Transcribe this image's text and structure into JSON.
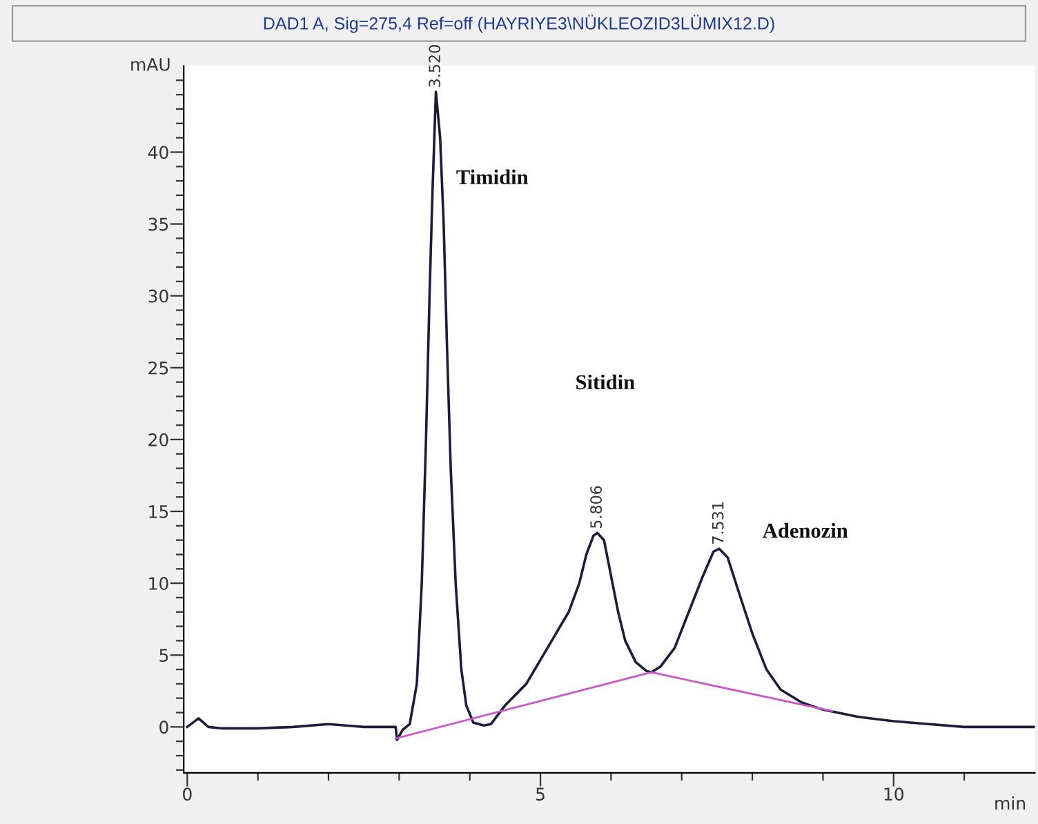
{
  "chart_data": {
    "type": "line",
    "title": "DAD1 A, Sig=275,4 Ref=off (HAYRIYE3\\NÜKLEOZID3LÜMIX12.D)",
    "xlabel": "min",
    "ylabel": "mAU",
    "series": [
      {
        "color": "#1c1c3c",
        "x": [
          0,
          0.16,
          0.3,
          0.5,
          1.0,
          1.5,
          2.0,
          2.5,
          2.95,
          2.97,
          3.05,
          3.15,
          3.25,
          3.32,
          3.38,
          3.43,
          3.47,
          3.52,
          3.58,
          3.63,
          3.68,
          3.73,
          3.8,
          3.88,
          3.95,
          4.05,
          4.2,
          4.3,
          4.5,
          4.8,
          5.1,
          5.4,
          5.55,
          5.65,
          5.75,
          5.806,
          5.9,
          6.0,
          6.1,
          6.2,
          6.35,
          6.5,
          6.57,
          6.7,
          6.9,
          7.1,
          7.3,
          7.45,
          7.531,
          7.65,
          7.8,
          8.0,
          8.2,
          8.4,
          8.7,
          9.0,
          9.5,
          10.0,
          10.5,
          11.0,
          12.0
        ],
        "values": [
          0,
          0.6,
          0,
          -0.1,
          -0.1,
          0,
          0.2,
          0,
          0,
          -0.9,
          -0.2,
          0.2,
          3,
          10,
          20,
          30,
          37,
          44.2,
          41,
          35,
          26,
          18,
          10,
          4,
          1.5,
          0.3,
          0.1,
          0.2,
          1.5,
          3,
          5.5,
          8,
          10,
          12,
          13.3,
          13.5,
          13,
          10.5,
          8,
          6,
          4.5,
          3.9,
          3.8,
          4.2,
          5.5,
          8,
          10.5,
          12.2,
          12.4,
          11.8,
          9.5,
          6.5,
          4,
          2.6,
          1.7,
          1.2,
          0.7,
          0.4,
          0.2,
          0,
          0
        ]
      },
      {
        "color": "#cc55cc",
        "x": [
          2.95,
          6.57,
          9.13
        ],
        "values": [
          -0.8,
          3.8,
          1.1
        ]
      }
    ],
    "annotations": [
      {
        "text": "3.520",
        "x": 3.52,
        "y": 44.2
      },
      {
        "text": "5.806",
        "x": 5.806,
        "y": 13.5
      },
      {
        "text": "7.531",
        "x": 7.531,
        "y": 12.4
      },
      "Timidin",
      "Sitidin",
      "Adenozin"
    ],
    "xlim": [
      -0.05,
      12.0
    ],
    "ylim": [
      -3.2,
      46
    ],
    "xticks": [
      0,
      {
        "value": 1,
        "label": null
      },
      {
        "value": 2,
        "label": null
      },
      {
        "value": 3,
        "label": null
      },
      {
        "value": 4,
        "label": null
      },
      5,
      {
        "value": 6,
        "label": null
      },
      {
        "value": 7,
        "label": null
      },
      {
        "value": 8,
        "label": null
      },
      {
        "value": 9,
        "label": null
      },
      10,
      {
        "value": 11,
        "label": null
      }
    ],
    "yticks": [
      {
        "value": -3,
        "label": null
      },
      {
        "value": -2,
        "label": null
      },
      {
        "value": -1,
        "label": null
      },
      0,
      {
        "value": 1,
        "label": null
      },
      {
        "value": 2,
        "label": null
      },
      {
        "value": 3,
        "label": null
      },
      {
        "value": 4,
        "label": null
      },
      5,
      {
        "value": 6,
        "label": null
      },
      {
        "value": 7,
        "label": null
      },
      {
        "value": 8,
        "label": null
      },
      {
        "value": 9,
        "label": null
      },
      10,
      {
        "value": 11,
        "label": null
      },
      {
        "value": 12,
        "label": null
      },
      {
        "value": 13,
        "label": null
      },
      {
        "value": 14,
        "label": null
      },
      15,
      {
        "value": 16,
        "label": null
      },
      {
        "value": 17,
        "label": null
      },
      {
        "value": 18,
        "label": null
      },
      {
        "value": 19,
        "label": null
      },
      20,
      {
        "value": 21,
        "label": null
      },
      {
        "value": 22,
        "label": null
      },
      {
        "value": 23,
        "label": null
      },
      {
        "value": 24,
        "label": null
      },
      25,
      {
        "value": 26,
        "label": null
      },
      {
        "value": 27,
        "label": null
      },
      {
        "value": 28,
        "label": null
      },
      {
        "value": 29,
        "label": null
      },
      30,
      {
        "value": 31,
        "label": null
      },
      {
        "value": 32,
        "label": null
      },
      {
        "value": 33,
        "label": null
      },
      {
        "value": 34,
        "label": null
      },
      35,
      {
        "value": 36,
        "label": null
      },
      {
        "value": 37,
        "label": null
      },
      {
        "value": 38,
        "label": null
      },
      {
        "value": 39,
        "label": null
      },
      40,
      {
        "value": 41,
        "label": null
      },
      {
        "value": 42,
        "label": null
      },
      {
        "value": 43,
        "label": null
      },
      {
        "value": 44,
        "label": null
      },
      {
        "value": 45,
        "label": null
      }
    ],
    "grid": false,
    "legend": false,
    "marker": "none",
    "line_style": "solid"
  }
}
